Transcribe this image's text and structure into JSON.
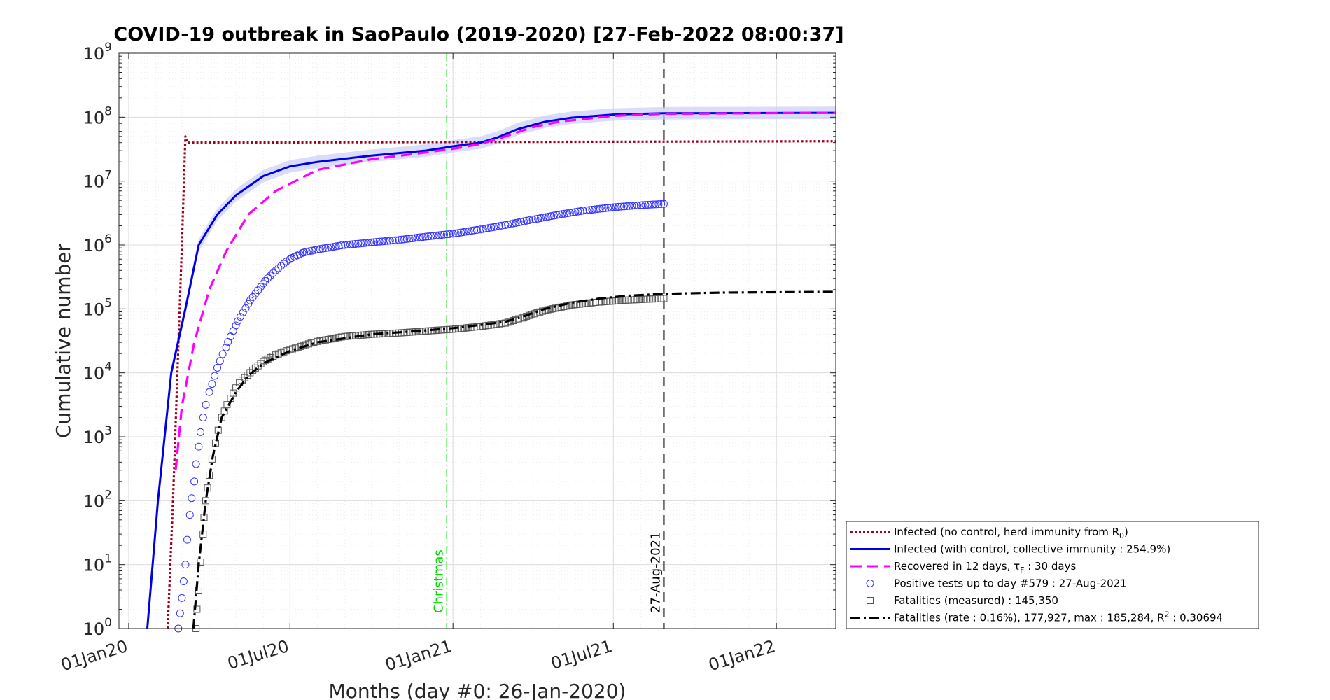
{
  "chart_data": {
    "type": "line",
    "title": "COVID-19 outbreak in SaoPaulo (2019-2020) [27-Feb-2022 08:00:37]",
    "xlabel": "Months (day #0: 26-Jan-2020)",
    "ylabel": "Cumulative number",
    "y_scale": "log",
    "ylim": [
      1,
      1000000000
    ],
    "xlim": [
      "2019-12-21",
      "2022-03-09"
    ],
    "grid": true,
    "legend_position": "bottom-right, outside plot",
    "x_ticks": [
      {
        "date": "2020-01-01",
        "label": "01Jan20"
      },
      {
        "date": "2020-07-01",
        "label": "01Jul20"
      },
      {
        "date": "2021-01-01",
        "label": "01Jan21"
      },
      {
        "date": "2021-07-01",
        "label": "01Jul21"
      },
      {
        "date": "2022-01-01",
        "label": "01Jan22"
      }
    ],
    "y_ticks": [
      {
        "value": 1,
        "base": "10",
        "exp": "0"
      },
      {
        "value": 10,
        "base": "10",
        "exp": "1"
      },
      {
        "value": 100,
        "base": "10",
        "exp": "2"
      },
      {
        "value": 1000,
        "base": "10",
        "exp": "3"
      },
      {
        "value": 10000,
        "base": "10",
        "exp": "4"
      },
      {
        "value": 100000,
        "base": "10",
        "exp": "5"
      },
      {
        "value": 1000000,
        "base": "10",
        "exp": "6"
      },
      {
        "value": 10000000,
        "base": "10",
        "exp": "7"
      },
      {
        "value": 100000000,
        "base": "10",
        "exp": "8"
      },
      {
        "value": 1000000000,
        "base": "10",
        "exp": "9"
      }
    ],
    "vertical_lines": [
      {
        "date": "2020-12-25",
        "label": "Christmas",
        "color": "#00dd00",
        "style": "dashdot"
      },
      {
        "date": "2021-08-27",
        "label": "27-Aug-2021",
        "color": "#000000",
        "style": "dashed"
      }
    ],
    "series": [
      {
        "key": "no_control",
        "style": "dotted",
        "color": "#a0001e",
        "points": [
          [
            "2020-02-14",
            1
          ],
          [
            "2020-02-20",
            100
          ],
          [
            "2020-02-25",
            10000
          ],
          [
            "2020-03-01",
            1000000
          ],
          [
            "2020-03-05",
            50000000
          ],
          [
            "2020-03-07",
            40000000
          ],
          [
            "2022-03-09",
            42000000
          ]
        ]
      },
      {
        "key": "with_control",
        "style": "solid",
        "color": "#0000e6",
        "band_color": "#c9cff7",
        "points": [
          [
            "2020-01-22",
            1
          ],
          [
            "2020-02-03",
            100
          ],
          [
            "2020-02-18",
            10000
          ],
          [
            "2020-03-05",
            100000
          ],
          [
            "2020-03-20",
            1000000
          ],
          [
            "2020-04-10",
            3000000
          ],
          [
            "2020-05-01",
            6000000
          ],
          [
            "2020-06-01",
            12000000
          ],
          [
            "2020-07-01",
            17000000
          ],
          [
            "2020-08-01",
            20000000
          ],
          [
            "2020-10-01",
            25000000
          ],
          [
            "2020-12-01",
            30000000
          ],
          [
            "2021-01-01",
            35000000
          ],
          [
            "2021-02-01",
            40000000
          ],
          [
            "2021-02-20",
            48000000
          ],
          [
            "2021-03-15",
            65000000
          ],
          [
            "2021-04-15",
            85000000
          ],
          [
            "2021-05-15",
            98000000
          ],
          [
            "2021-07-01",
            110000000
          ],
          [
            "2021-08-27",
            115000000
          ],
          [
            "2022-03-09",
            117000000
          ]
        ]
      },
      {
        "key": "recovered",
        "style": "dashed",
        "color": "#ff00ff",
        "points": [
          [
            "2020-02-23",
            300
          ],
          [
            "2020-03-01",
            3000
          ],
          [
            "2020-03-15",
            30000
          ],
          [
            "2020-04-01",
            200000
          ],
          [
            "2020-04-20",
            800000
          ],
          [
            "2020-05-15",
            3000000
          ],
          [
            "2020-06-15",
            7000000
          ],
          [
            "2020-08-01",
            15000000
          ],
          [
            "2020-10-01",
            22000000
          ],
          [
            "2020-12-01",
            28000000
          ],
          [
            "2021-01-01",
            32000000
          ],
          [
            "2021-02-01",
            38000000
          ],
          [
            "2021-03-01",
            50000000
          ],
          [
            "2021-04-01",
            70000000
          ],
          [
            "2021-05-01",
            85000000
          ],
          [
            "2021-07-01",
            105000000
          ],
          [
            "2021-08-27",
            113000000
          ],
          [
            "2022-03-09",
            117000000
          ]
        ]
      },
      {
        "key": "positive_tests",
        "style": "markers-circle",
        "color": "#3333ff",
        "points": [
          [
            "2020-02-26",
            1
          ],
          [
            "2020-03-01",
            3
          ],
          [
            "2020-03-05",
            10
          ],
          [
            "2020-03-10",
            60
          ],
          [
            "2020-03-15",
            200
          ],
          [
            "2020-03-20",
            700
          ],
          [
            "2020-03-25",
            2000
          ],
          [
            "2020-04-01",
            5000
          ],
          [
            "2020-04-10",
            12000
          ],
          [
            "2020-04-20",
            25000
          ],
          [
            "2020-05-01",
            55000
          ],
          [
            "2020-05-15",
            120000
          ],
          [
            "2020-06-01",
            250000
          ],
          [
            "2020-06-15",
            400000
          ],
          [
            "2020-07-01",
            600000
          ],
          [
            "2020-07-15",
            750000
          ],
          [
            "2020-08-01",
            850000
          ],
          [
            "2020-09-01",
            1000000
          ],
          [
            "2020-10-01",
            1100000
          ],
          [
            "2020-11-01",
            1200000
          ],
          [
            "2020-12-01",
            1350000
          ],
          [
            "2021-01-01",
            1500000
          ],
          [
            "2021-02-01",
            1750000
          ],
          [
            "2021-03-01",
            2050000
          ],
          [
            "2021-04-01",
            2500000
          ],
          [
            "2021-05-01",
            3000000
          ],
          [
            "2021-06-01",
            3500000
          ],
          [
            "2021-07-01",
            3900000
          ],
          [
            "2021-08-01",
            4200000
          ],
          [
            "2021-08-27",
            4400000
          ]
        ]
      },
      {
        "key": "fatalities_measured",
        "style": "markers-square",
        "color": "#555555",
        "points": [
          [
            "2020-03-17",
            1
          ],
          [
            "2020-03-20",
            4
          ],
          [
            "2020-03-25",
            30
          ],
          [
            "2020-03-28",
            100
          ],
          [
            "2020-04-01",
            250
          ],
          [
            "2020-04-08",
            800
          ],
          [
            "2020-04-15",
            2000
          ],
          [
            "2020-04-25",
            4000
          ],
          [
            "2020-05-05",
            7000
          ],
          [
            "2020-05-20",
            11000
          ],
          [
            "2020-06-01",
            15000
          ],
          [
            "2020-06-15",
            19000
          ],
          [
            "2020-07-01",
            23000
          ],
          [
            "2020-08-01",
            31000
          ],
          [
            "2020-09-01",
            37000
          ],
          [
            "2020-10-01",
            40000
          ],
          [
            "2020-11-01",
            42000
          ],
          [
            "2020-12-01",
            45000
          ],
          [
            "2021-01-01",
            48000
          ],
          [
            "2021-02-01",
            53000
          ],
          [
            "2021-03-01",
            60000
          ],
          [
            "2021-03-20",
            72000
          ],
          [
            "2021-04-15",
            95000
          ],
          [
            "2021-05-15",
            115000
          ],
          [
            "2021-06-15",
            128000
          ],
          [
            "2021-07-15",
            137000
          ],
          [
            "2021-08-27",
            145350
          ]
        ]
      },
      {
        "key": "fatalities_model",
        "style": "dashdot",
        "color": "#000000",
        "points": [
          [
            "2020-03-14",
            1
          ],
          [
            "2020-03-20",
            10
          ],
          [
            "2020-03-28",
            100
          ],
          [
            "2020-04-05",
            500
          ],
          [
            "2020-04-15",
            2000
          ],
          [
            "2020-05-01",
            5000
          ],
          [
            "2020-05-15",
            9000
          ],
          [
            "2020-06-01",
            14000
          ],
          [
            "2020-07-01",
            22000
          ],
          [
            "2020-08-01",
            30000
          ],
          [
            "2020-10-01",
            40000
          ],
          [
            "2020-12-01",
            46000
          ],
          [
            "2021-01-01",
            50000
          ],
          [
            "2021-02-01",
            56000
          ],
          [
            "2021-03-01",
            63000
          ],
          [
            "2021-03-20",
            75000
          ],
          [
            "2021-04-15",
            100000
          ],
          [
            "2021-05-15",
            125000
          ],
          [
            "2021-06-15",
            145000
          ],
          [
            "2021-07-15",
            160000
          ],
          [
            "2021-08-27",
            172000
          ],
          [
            "2021-11-01",
            180000
          ],
          [
            "2022-03-09",
            185284
          ]
        ]
      }
    ],
    "legend": [
      {
        "key": "no_control",
        "text": "Infected (no control, herd immunity from R",
        "sub": "0",
        "suffix": ")"
      },
      {
        "key": "with_control",
        "text": "Infected (with control, collective immunity : 254.9%)"
      },
      {
        "key": "recovered",
        "text": "Recovered in 12 days, τ",
        "sub": "F",
        "suffix": " : 30 days"
      },
      {
        "key": "positive_tests",
        "text": "Positive tests up to day #579 : 27-Aug-2021"
      },
      {
        "key": "fatalities_measured",
        "text": "Fatalities (measured) : 145,350"
      },
      {
        "key": "fatalities_model",
        "text": "Fatalities (rate : 0.16%), 177,927, max : 185,284, R",
        "sup": "2",
        "suffix": " : 0.30694"
      }
    ]
  }
}
